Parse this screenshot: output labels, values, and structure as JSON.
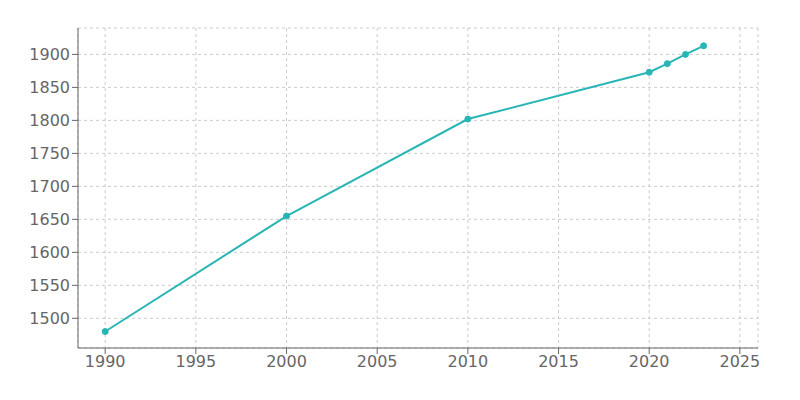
{
  "chart_data": {
    "type": "line",
    "x": [
      1990,
      2000,
      2010,
      2020,
      2021,
      2022,
      2023
    ],
    "values": [
      1480,
      1655,
      1802,
      1873,
      1886,
      1900,
      1913
    ],
    "color": "#29b5b5",
    "marker": "circle",
    "xlim": [
      1988.5,
      2026
    ],
    "ylim": [
      1455,
      1940
    ],
    "xticks": [
      1990,
      1995,
      2000,
      2005,
      2010,
      2015,
      2020,
      2025
    ],
    "yticks": [
      1500,
      1550,
      1600,
      1650,
      1700,
      1750,
      1800,
      1850,
      1900
    ],
    "grid": true
  }
}
